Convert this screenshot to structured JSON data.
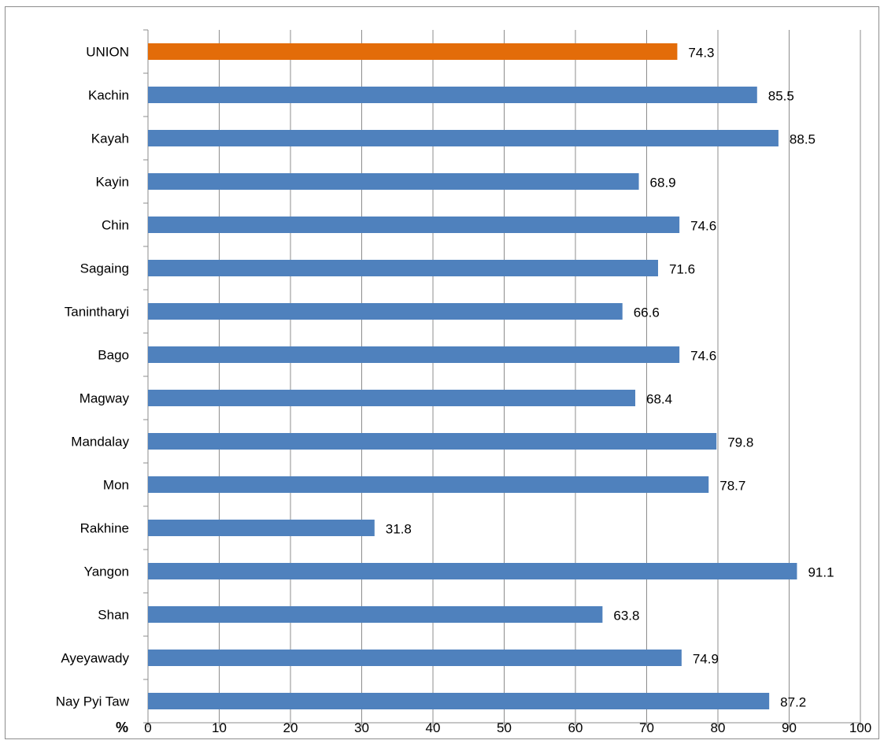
{
  "chart_data": {
    "type": "bar",
    "orientation": "horizontal",
    "title": "",
    "xlabel": "%",
    "ylabel": "",
    "xlim": [
      0,
      100
    ],
    "x_ticks": [
      0,
      10,
      20,
      30,
      40,
      50,
      60,
      70,
      80,
      90,
      100
    ],
    "grid": true,
    "legend": "none",
    "categories": [
      "UNION",
      "Kachin",
      "Kayah",
      "Kayin",
      "Chin",
      "Sagaing",
      "Tanintharyi",
      "Bago",
      "Magway",
      "Mandalay",
      "Mon",
      "Rakhine",
      "Yangon",
      "Shan",
      "Ayeyawady",
      "Nay Pyi Taw"
    ],
    "values": [
      74.3,
      85.5,
      88.5,
      68.9,
      74.6,
      71.6,
      66.6,
      74.6,
      68.4,
      79.8,
      78.7,
      31.8,
      91.1,
      63.8,
      74.9,
      87.2
    ],
    "data_labels": [
      "74.3",
      "85.5",
      "88.5",
      "68.9",
      "74.6",
      "71.6",
      "66.6",
      "74.6",
      "68.4",
      "79.8",
      "78.7",
      "31.8",
      "91.1",
      "63.8",
      "74.9",
      "87.2"
    ],
    "colors": {
      "bar": "#4f81bd",
      "highlight": "#e36c09",
      "grid": "#8c8c8c",
      "axis": "#8c8c8c"
    },
    "highlight_categories": [
      "UNION"
    ]
  }
}
